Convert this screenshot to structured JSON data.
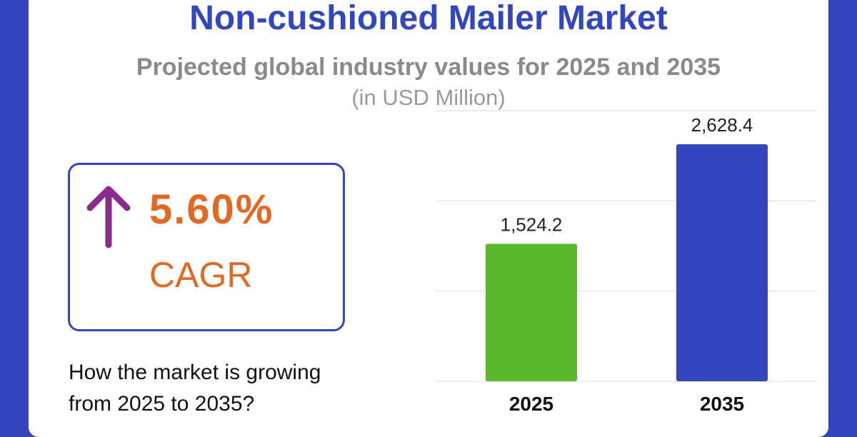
{
  "header": {
    "title": "Non-cushioned Mailer Market",
    "subtitle": "Projected global industry values for 2025 and 2035",
    "unit": "(in USD Million)"
  },
  "cagr": {
    "value": "5.60%",
    "label": "CAGR",
    "arrow_icon": "up-arrow-icon"
  },
  "question": "How the market is growing from 2025 to 2035?",
  "colors": {
    "brand_blue": "#3346bd",
    "accent_orange": "#e06a23",
    "arrow_purple": "#8b2a8f",
    "bar_green": "#5ab92c",
    "bar_blue": "#3346bd"
  },
  "chart_data": {
    "type": "bar",
    "categories": [
      "2025",
      "2035"
    ],
    "values": [
      1524.2,
      2628.4
    ],
    "value_labels": [
      "1,524.2",
      "2,628.4"
    ],
    "bar_colors": [
      "#5ab92c",
      "#3346bd"
    ],
    "ylim": [
      0,
      3000
    ],
    "grid": true,
    "y_axis_visible": false
  }
}
